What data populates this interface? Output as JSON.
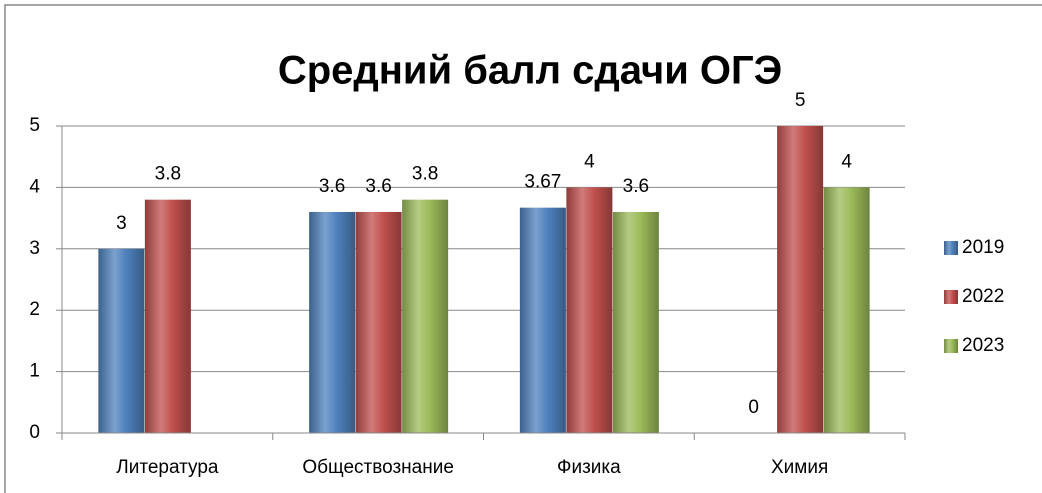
{
  "chart_data": {
    "type": "bar",
    "title": "Средний балл сдачи ОГЭ",
    "categories": [
      "Литература",
      "Обществознание",
      "Физика",
      "Химия"
    ],
    "series": [
      {
        "name": "2019",
        "color": "#4f81bd",
        "values": [
          3,
          3.6,
          3.67,
          0
        ]
      },
      {
        "name": "2022",
        "color": "#c0504d",
        "values": [
          3.8,
          3.6,
          4,
          5
        ]
      },
      {
        "name": "2023",
        "color": "#9bbb59",
        "values": [
          null,
          3.8,
          3.6,
          4
        ]
      }
    ],
    "ylim": [
      0,
      5
    ],
    "yticks": [
      0,
      1,
      2,
      3,
      4,
      5
    ],
    "grid": true,
    "legend": "right"
  }
}
